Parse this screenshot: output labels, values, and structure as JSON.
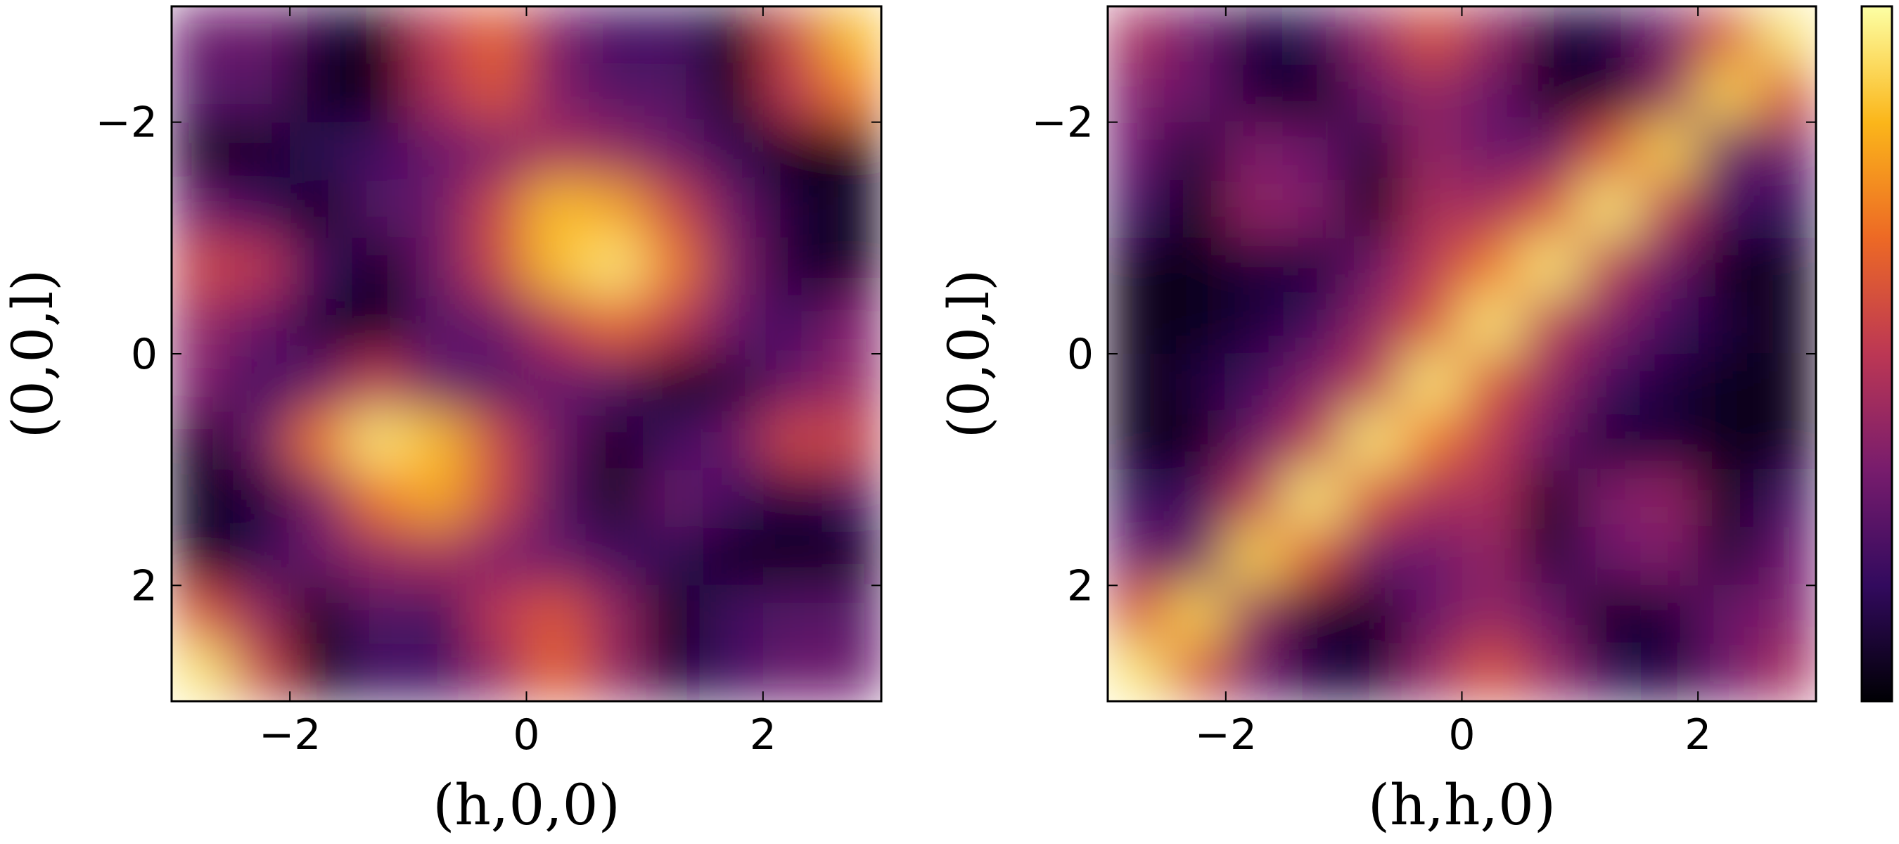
{
  "chart_data": [
    {
      "type": "heatmap",
      "xlabel": "(h,0,0)",
      "ylabel": "(0,0,l)",
      "xlim": [
        -3,
        3
      ],
      "ylim": [
        3,
        -3
      ],
      "xticks": [
        {
          "value": -2,
          "label": "−2"
        },
        0,
        2
      ],
      "yticks": [
        {
          "value": -2,
          "label": "−2"
        },
        0,
        2
      ],
      "x": [
        -2.75,
        -2.25,
        -1.75,
        -1.25,
        -0.75,
        -0.25,
        0.25,
        0.75,
        1.25,
        1.75,
        2.25,
        2.75
      ],
      "y": [
        -2.75,
        -2.25,
        -1.75,
        -1.25,
        -0.75,
        -0.25,
        0.25,
        0.75,
        1.25,
        1.75,
        2.25,
        2.75
      ],
      "clim": [
        0,
        1
      ],
      "colormap": [
        "#000004",
        "#320a5e",
        "#781c6d",
        "#bc3754",
        "#ed6925",
        "#fbb61a",
        "#fcffa4"
      ],
      "z": [
        [
          0.3,
          0.3,
          0.1,
          0.05,
          0.5,
          0.65,
          0.35,
          0.2,
          0.2,
          0.05,
          0.55,
          0.85
        ],
        [
          0.25,
          0.25,
          0.05,
          0.05,
          0.45,
          0.6,
          0.35,
          0.25,
          0.25,
          0.05,
          0.5,
          0.7
        ],
        [
          0.05,
          0.05,
          0.15,
          0.2,
          0.3,
          0.35,
          0.45,
          0.4,
          0.3,
          0.15,
          0.05,
          0.05
        ],
        [
          0.3,
          0.2,
          0.05,
          0.25,
          0.3,
          0.55,
          0.85,
          0.8,
          0.55,
          0.3,
          0.1,
          0.05
        ],
        [
          0.55,
          0.5,
          0.2,
          0.05,
          0.3,
          0.55,
          0.85,
          0.95,
          0.7,
          0.35,
          0.1,
          0.05
        ],
        [
          0.4,
          0.3,
          0.1,
          0.05,
          0.25,
          0.3,
          0.5,
          0.65,
          0.5,
          0.3,
          0.2,
          0.35
        ],
        [
          0.35,
          0.2,
          0.3,
          0.5,
          0.3,
          0.25,
          0.3,
          0.25,
          0.05,
          0.1,
          0.3,
          0.4
        ],
        [
          0.05,
          0.3,
          0.7,
          0.95,
          0.85,
          0.55,
          0.3,
          0.05,
          0.2,
          0.3,
          0.55,
          0.55
        ],
        [
          0.05,
          0.1,
          0.35,
          0.7,
          0.8,
          0.55,
          0.25,
          0.05,
          0.3,
          0.2,
          0.1,
          0.2
        ],
        [
          0.05,
          0.15,
          0.3,
          0.4,
          0.45,
          0.35,
          0.3,
          0.2,
          0.15,
          0.05,
          0.05,
          0.05
        ],
        [
          0.6,
          0.4,
          0.05,
          0.25,
          0.2,
          0.5,
          0.6,
          0.4,
          0.05,
          0.2,
          0.25,
          0.25
        ],
        [
          0.95,
          0.55,
          0.05,
          0.2,
          0.2,
          0.4,
          0.65,
          0.4,
          0.1,
          0.2,
          0.3,
          0.3
        ]
      ]
    },
    {
      "type": "heatmap",
      "xlabel": "(h,h,0)",
      "ylabel": "(0,0,l)",
      "xlim": [
        -3,
        3
      ],
      "ylim": [
        3,
        -3
      ],
      "xticks": [
        {
          "value": -2,
          "label": "−2"
        },
        0,
        2
      ],
      "yticks": [
        {
          "value": -2,
          "label": "−2"
        },
        0,
        2
      ],
      "x": [
        -2.75,
        -2.25,
        -1.75,
        -1.25,
        -0.75,
        -0.25,
        0.25,
        0.75,
        1.25,
        1.75,
        2.25,
        2.75
      ],
      "y": [
        -2.75,
        -2.25,
        -1.75,
        -1.25,
        -0.75,
        -0.25,
        0.25,
        0.75,
        1.25,
        1.75,
        2.25,
        2.75
      ],
      "clim": [
        0,
        1
      ],
      "colorbar": true,
      "colormap": [
        "#000004",
        "#320a5e",
        "#781c6d",
        "#bc3754",
        "#ed6925",
        "#fbb61a",
        "#fcffa4"
      ],
      "z": [
        [
          0.45,
          0.3,
          0.1,
          0.15,
          0.4,
          0.6,
          0.4,
          0.1,
          0.1,
          0.3,
          0.6,
          0.95
        ],
        [
          0.35,
          0.3,
          0.1,
          0.05,
          0.3,
          0.4,
          0.3,
          0.05,
          0.1,
          0.4,
          0.9,
          0.6
        ],
        [
          0.3,
          0.1,
          0.35,
          0.3,
          0.1,
          0.4,
          0.3,
          0.3,
          0.6,
          0.9,
          0.3,
          0.3
        ],
        [
          0.2,
          0.05,
          0.4,
          0.35,
          0.05,
          0.45,
          0.45,
          0.6,
          0.95,
          0.5,
          0.2,
          0.15
        ],
        [
          0.05,
          0.05,
          0.1,
          0.1,
          0.3,
          0.5,
          0.7,
          0.95,
          0.5,
          0.3,
          0.05,
          0.05
        ],
        [
          0.05,
          0.05,
          0.1,
          0.2,
          0.4,
          0.6,
          0.95,
          0.5,
          0.35,
          0.2,
          0.1,
          0.05
        ],
        [
          0.05,
          0.1,
          0.2,
          0.35,
          0.5,
          0.95,
          0.6,
          0.4,
          0.2,
          0.1,
          0.05,
          0.05
        ],
        [
          0.05,
          0.05,
          0.3,
          0.5,
          0.95,
          0.7,
          0.5,
          0.3,
          0.1,
          0.1,
          0.05,
          0.05
        ],
        [
          0.15,
          0.2,
          0.5,
          0.95,
          0.6,
          0.45,
          0.45,
          0.05,
          0.35,
          0.4,
          0.05,
          0.2
        ],
        [
          0.3,
          0.3,
          0.9,
          0.6,
          0.3,
          0.3,
          0.4,
          0.1,
          0.3,
          0.35,
          0.1,
          0.3
        ],
        [
          0.6,
          0.9,
          0.4,
          0.1,
          0.05,
          0.3,
          0.4,
          0.3,
          0.05,
          0.1,
          0.3,
          0.35
        ],
        [
          0.95,
          0.6,
          0.3,
          0.1,
          0.1,
          0.4,
          0.6,
          0.4,
          0.15,
          0.1,
          0.3,
          0.45
        ]
      ]
    }
  ]
}
